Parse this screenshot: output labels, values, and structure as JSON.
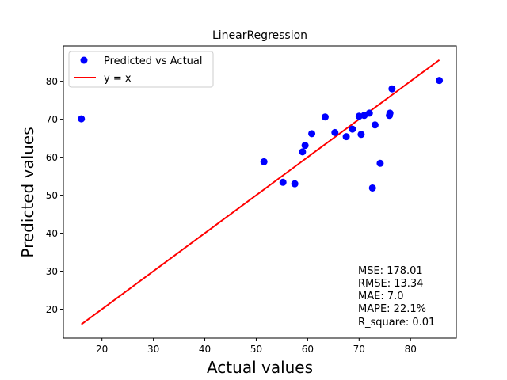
{
  "chart_data": {
    "type": "scatter",
    "title": "LinearRegression",
    "xlabel": "Actual values",
    "ylabel": "Predicted values",
    "xlim": [
      12.5,
      88.9
    ],
    "ylim": [
      12.4,
      89.3
    ],
    "xticks": [
      20,
      30,
      40,
      50,
      60,
      70,
      80
    ],
    "yticks": [
      20,
      30,
      40,
      50,
      60,
      70,
      80
    ],
    "grid": false,
    "legend": {
      "placement": "top-left",
      "entries": [
        "Predicted vs Actual",
        "y = x"
      ]
    },
    "series": [
      {
        "name": "Predicted vs Actual",
        "kind": "scatter",
        "color": "#0000ff",
        "points": [
          [
            16.0,
            70.1
          ],
          [
            51.5,
            58.8
          ],
          [
            55.2,
            53.4
          ],
          [
            57.5,
            53.0
          ],
          [
            59.0,
            61.4
          ],
          [
            59.5,
            63.1
          ],
          [
            60.8,
            66.2
          ],
          [
            63.4,
            70.6
          ],
          [
            65.3,
            66.5
          ],
          [
            67.5,
            65.4
          ],
          [
            68.7,
            67.4
          ],
          [
            70.0,
            70.8
          ],
          [
            70.4,
            66.0
          ],
          [
            71.0,
            71.0
          ],
          [
            72.0,
            71.6
          ],
          [
            73.1,
            68.5
          ],
          [
            74.1,
            58.4
          ],
          [
            72.6,
            51.9
          ],
          [
            75.9,
            71.0
          ],
          [
            76.0,
            71.6
          ],
          [
            76.4,
            78.0
          ],
          [
            85.6,
            80.2
          ]
        ]
      },
      {
        "name": "y = x",
        "kind": "line",
        "color": "#ff0000",
        "points": [
          [
            16.0,
            16.0
          ],
          [
            85.6,
            85.6
          ]
        ]
      }
    ],
    "annotations": [
      "MSE: 178.01",
      "RMSE: 13.34",
      "MAE: 7.0",
      "MAPE: 22.1%",
      "R_square: 0.01"
    ]
  }
}
